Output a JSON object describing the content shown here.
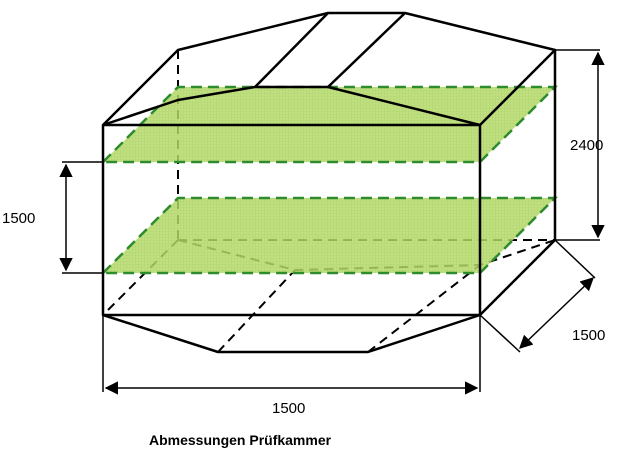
{
  "diagram": {
    "dimension_labels": {
      "height_total": "2400",
      "height_level": "1500",
      "depth": "1500",
      "width": "1500"
    },
    "caption": "Abmessungen Prüfkammer",
    "colors": {
      "outline": "#000000",
      "plane_fill": "#b5d96a",
      "plane_border": "#2e8b2e"
    }
  }
}
